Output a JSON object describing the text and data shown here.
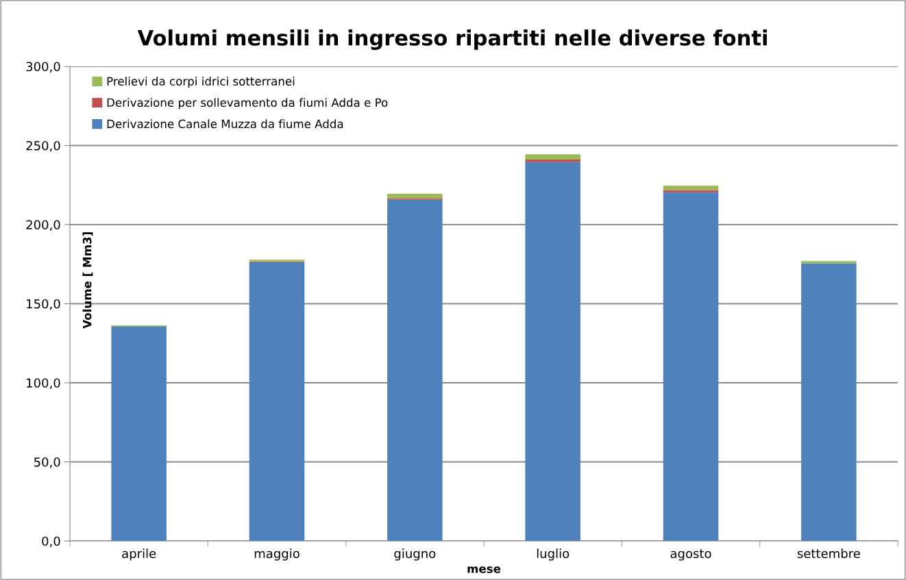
{
  "chart_data": {
    "type": "bar",
    "stacked": true,
    "title": "Volumi mensili in ingresso ripartiti nelle diverse fonti",
    "xlabel": "mese",
    "ylabel": "Volume [ Mm3]",
    "categories": [
      "aprile",
      "maggio",
      "giugno",
      "luglio",
      "agosto",
      "settembre"
    ],
    "series": [
      {
        "name": "Derivazione Canale Muzza da fiume Adda",
        "color": "#4f81bd",
        "values": [
          135.5,
          176.3,
          215.8,
          239.5,
          220.5,
          175.5
        ]
      },
      {
        "name": "Derivazione per sollevamento da fiumi Adda e Po",
        "color": "#c0504d",
        "values": [
          null,
          0.4,
          0.9,
          1.6,
          1.4,
          null
        ]
      },
      {
        "name": "Prelievi da corpi idrici sotterranei",
        "color": "#9bbb59",
        "values": [
          0.8,
          1.1,
          2.8,
          3.4,
          2.8,
          1.5
        ]
      }
    ],
    "ylim": [
      0,
      300
    ],
    "yticks": [
      {
        "value": 0,
        "label": "0,0"
      },
      {
        "value": 50,
        "label": "50,0"
      },
      {
        "value": 100,
        "label": "100,0"
      },
      {
        "value": 150,
        "label": "150,0"
      },
      {
        "value": 200,
        "label": "200,0"
      },
      {
        "value": 250,
        "label": "250,0"
      },
      {
        "value": 300,
        "label": "300,0"
      }
    ],
    "grid": "y",
    "legend": "top left"
  }
}
